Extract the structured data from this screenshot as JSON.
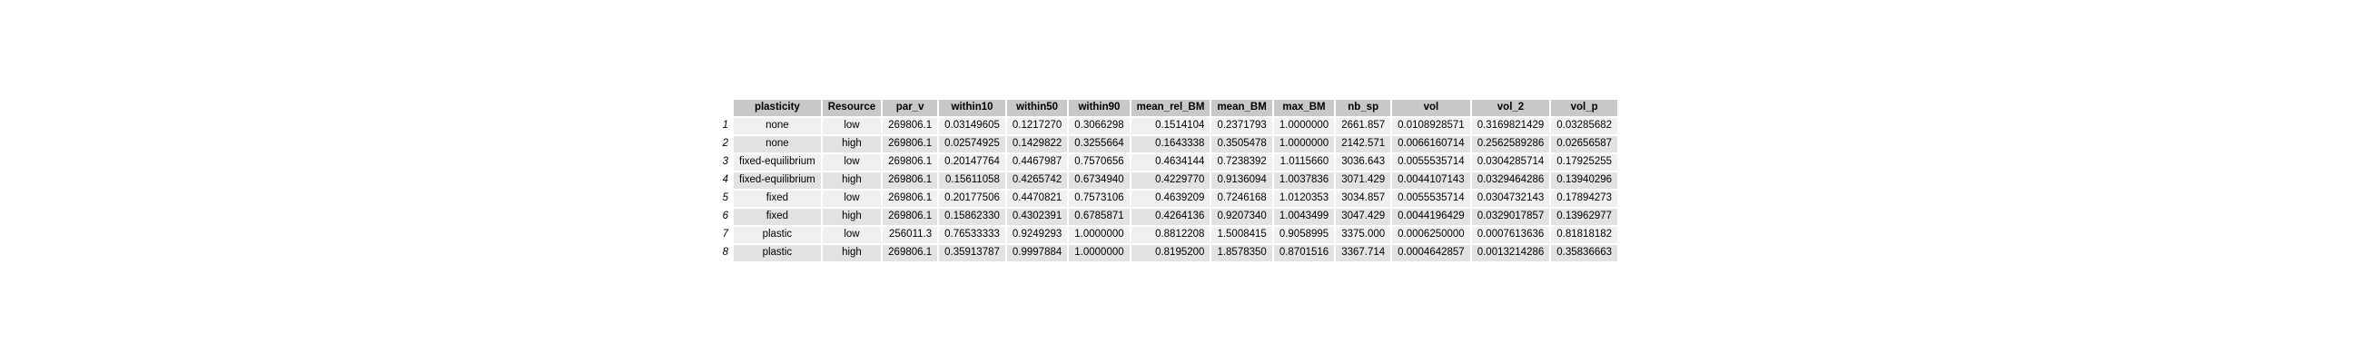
{
  "table": {
    "columns": [
      "plasticity",
      "Resource",
      "par_v",
      "within10",
      "within50",
      "within90",
      "mean_rel_BM",
      "mean_BM",
      "max_BM",
      "nb_sp",
      "vol",
      "vol_2",
      "vol_p"
    ],
    "rows": [
      {
        "rowname": "1",
        "cells": [
          "none",
          "low",
          "269806.1",
          "0.03149605",
          "0.1217270",
          "0.3066298",
          "0.1514104",
          "0.2371793",
          "1.0000000",
          "2661.857",
          "0.0108928571",
          "0.3169821429",
          "0.03285682"
        ]
      },
      {
        "rowname": "2",
        "cells": [
          "none",
          "high",
          "269806.1",
          "0.02574925",
          "0.1429822",
          "0.3255664",
          "0.1643338",
          "0.3505478",
          "1.0000000",
          "2142.571",
          "0.0066160714",
          "0.2562589286",
          "0.02656587"
        ]
      },
      {
        "rowname": "3",
        "cells": [
          "fixed-equilibrium",
          "low",
          "269806.1",
          "0.20147764",
          "0.4467987",
          "0.7570656",
          "0.4634144",
          "0.7238392",
          "1.0115660",
          "3036.643",
          "0.0055535714",
          "0.0304285714",
          "0.17925255"
        ]
      },
      {
        "rowname": "4",
        "cells": [
          "fixed-equilibrium",
          "high",
          "269806.1",
          "0.15611058",
          "0.4265742",
          "0.6734940",
          "0.4229770",
          "0.9136094",
          "1.0037836",
          "3071.429",
          "0.0044107143",
          "0.0329464286",
          "0.13940296"
        ]
      },
      {
        "rowname": "5",
        "cells": [
          "fixed",
          "low",
          "269806.1",
          "0.20177506",
          "0.4470821",
          "0.7573106",
          "0.4639209",
          "0.7246168",
          "1.0120353",
          "3034.857",
          "0.0055535714",
          "0.0304732143",
          "0.17894273"
        ]
      },
      {
        "rowname": "6",
        "cells": [
          "fixed",
          "high",
          "269806.1",
          "0.15862330",
          "0.4302391",
          "0.6785871",
          "0.4264136",
          "0.9207340",
          "1.0043499",
          "3047.429",
          "0.0044196429",
          "0.0329017857",
          "0.13962977"
        ]
      },
      {
        "rowname": "7",
        "cells": [
          "plastic",
          "low",
          "256011.3",
          "0.76533333",
          "0.9249293",
          "1.0000000",
          "0.8812208",
          "1.5008415",
          "0.9058995",
          "3375.000",
          "0.0006250000",
          "0.0007613636",
          "0.81818182"
        ]
      },
      {
        "rowname": "8",
        "cells": [
          "plastic",
          "high",
          "269806.1",
          "0.35913787",
          "0.9997884",
          "1.0000000",
          "0.8195200",
          "1.8578350",
          "0.8701516",
          "3367.714",
          "0.0004642857",
          "0.0013214286",
          "0.35836663"
        ]
      }
    ]
  }
}
